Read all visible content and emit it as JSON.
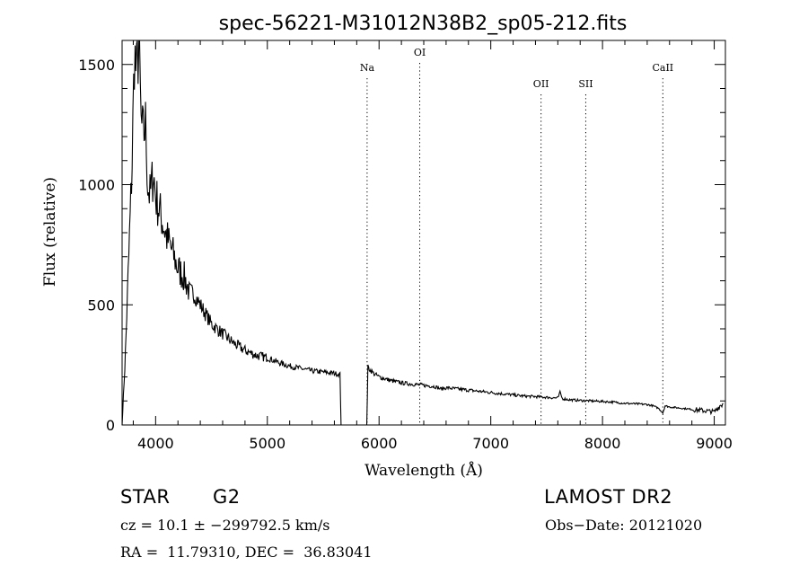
{
  "chart_data": {
    "type": "line",
    "title": "spec-56221-M31012N38B2_sp05-212.fits",
    "xlabel": "Wavelength (Å)",
    "ylabel": "Flux (relative)",
    "xlim": [
      3700,
      9100
    ],
    "ylim": [
      0,
      1600
    ],
    "xticks": [
      4000,
      5000,
      6000,
      7000,
      8000,
      9000
    ],
    "yticks": [
      0,
      500,
      1000,
      1500
    ],
    "xtick_labels": [
      "4000",
      "5000",
      "6000",
      "7000",
      "8000",
      "9000"
    ],
    "ytick_labels": [
      "0",
      "500",
      "1000",
      "1500"
    ],
    "grid": false,
    "line_color": "#000000",
    "gap": [
      5660,
      5890
    ],
    "lines": [
      {
        "label": "Na",
        "wavelength": 5893
      },
      {
        "label": "OI",
        "wavelength": 6364
      },
      {
        "label": "OII",
        "wavelength": 7450
      },
      {
        "label": "SII",
        "wavelength": 7850
      },
      {
        "label": "CaII",
        "wavelength": 8540
      }
    ],
    "series": [
      {
        "x": [
          3700,
          3730,
          3760,
          3790,
          3810,
          3830,
          3850,
          3870,
          3890,
          3910,
          3930,
          3950,
          3980,
          4000,
          4030,
          4060,
          4100,
          4150,
          4200,
          4250,
          4300,
          4350,
          4400,
          4450,
          4500,
          4550,
          4600,
          4700,
          4800,
          4900,
          5000,
          5100,
          5200,
          5300,
          5400,
          5500,
          5600,
          5650,
          5660,
          5890,
          5900,
          5950,
          6000,
          6100,
          6200,
          6300,
          6400,
          6500,
          6550,
          6600,
          6700,
          6800,
          6900,
          7000,
          7100,
          7200,
          7300,
          7400,
          7500,
          7600,
          7620,
          7640,
          7700,
          7800,
          7900,
          8000,
          8100,
          8200,
          8300,
          8400,
          8450,
          8500,
          8540,
          8560,
          8600,
          8700,
          8800,
          8900,
          9000,
          9050,
          9080
        ],
        "values": [
          0,
          300,
          700,
          1100,
          1550,
          1450,
          1600,
          1250,
          1200,
          1250,
          1000,
          950,
          1050,
          950,
          900,
          850,
          780,
          720,
          650,
          620,
          560,
          540,
          500,
          460,
          420,
          400,
          380,
          340,
          310,
          290,
          280,
          260,
          245,
          235,
          225,
          220,
          215,
          210,
          0,
          0,
          240,
          215,
          200,
          185,
          175,
          170,
          165,
          160,
          150,
          155,
          150,
          145,
          140,
          135,
          130,
          125,
          120,
          118,
          115,
          112,
          135,
          110,
          105,
          102,
          100,
          98,
          95,
          90,
          88,
          85,
          80,
          70,
          50,
          80,
          75,
          70,
          65,
          60,
          55,
          80,
          90
        ]
      }
    ]
  },
  "info": {
    "object_type": "STAR",
    "subclass": "G2",
    "survey": "LAMOST DR2",
    "cz": "cz = 10.1 ± −299792.5 km/s",
    "obs_date": "Obs−Date: 20121020",
    "coords": "RA =  11.79310, DEC =  36.83041"
  }
}
